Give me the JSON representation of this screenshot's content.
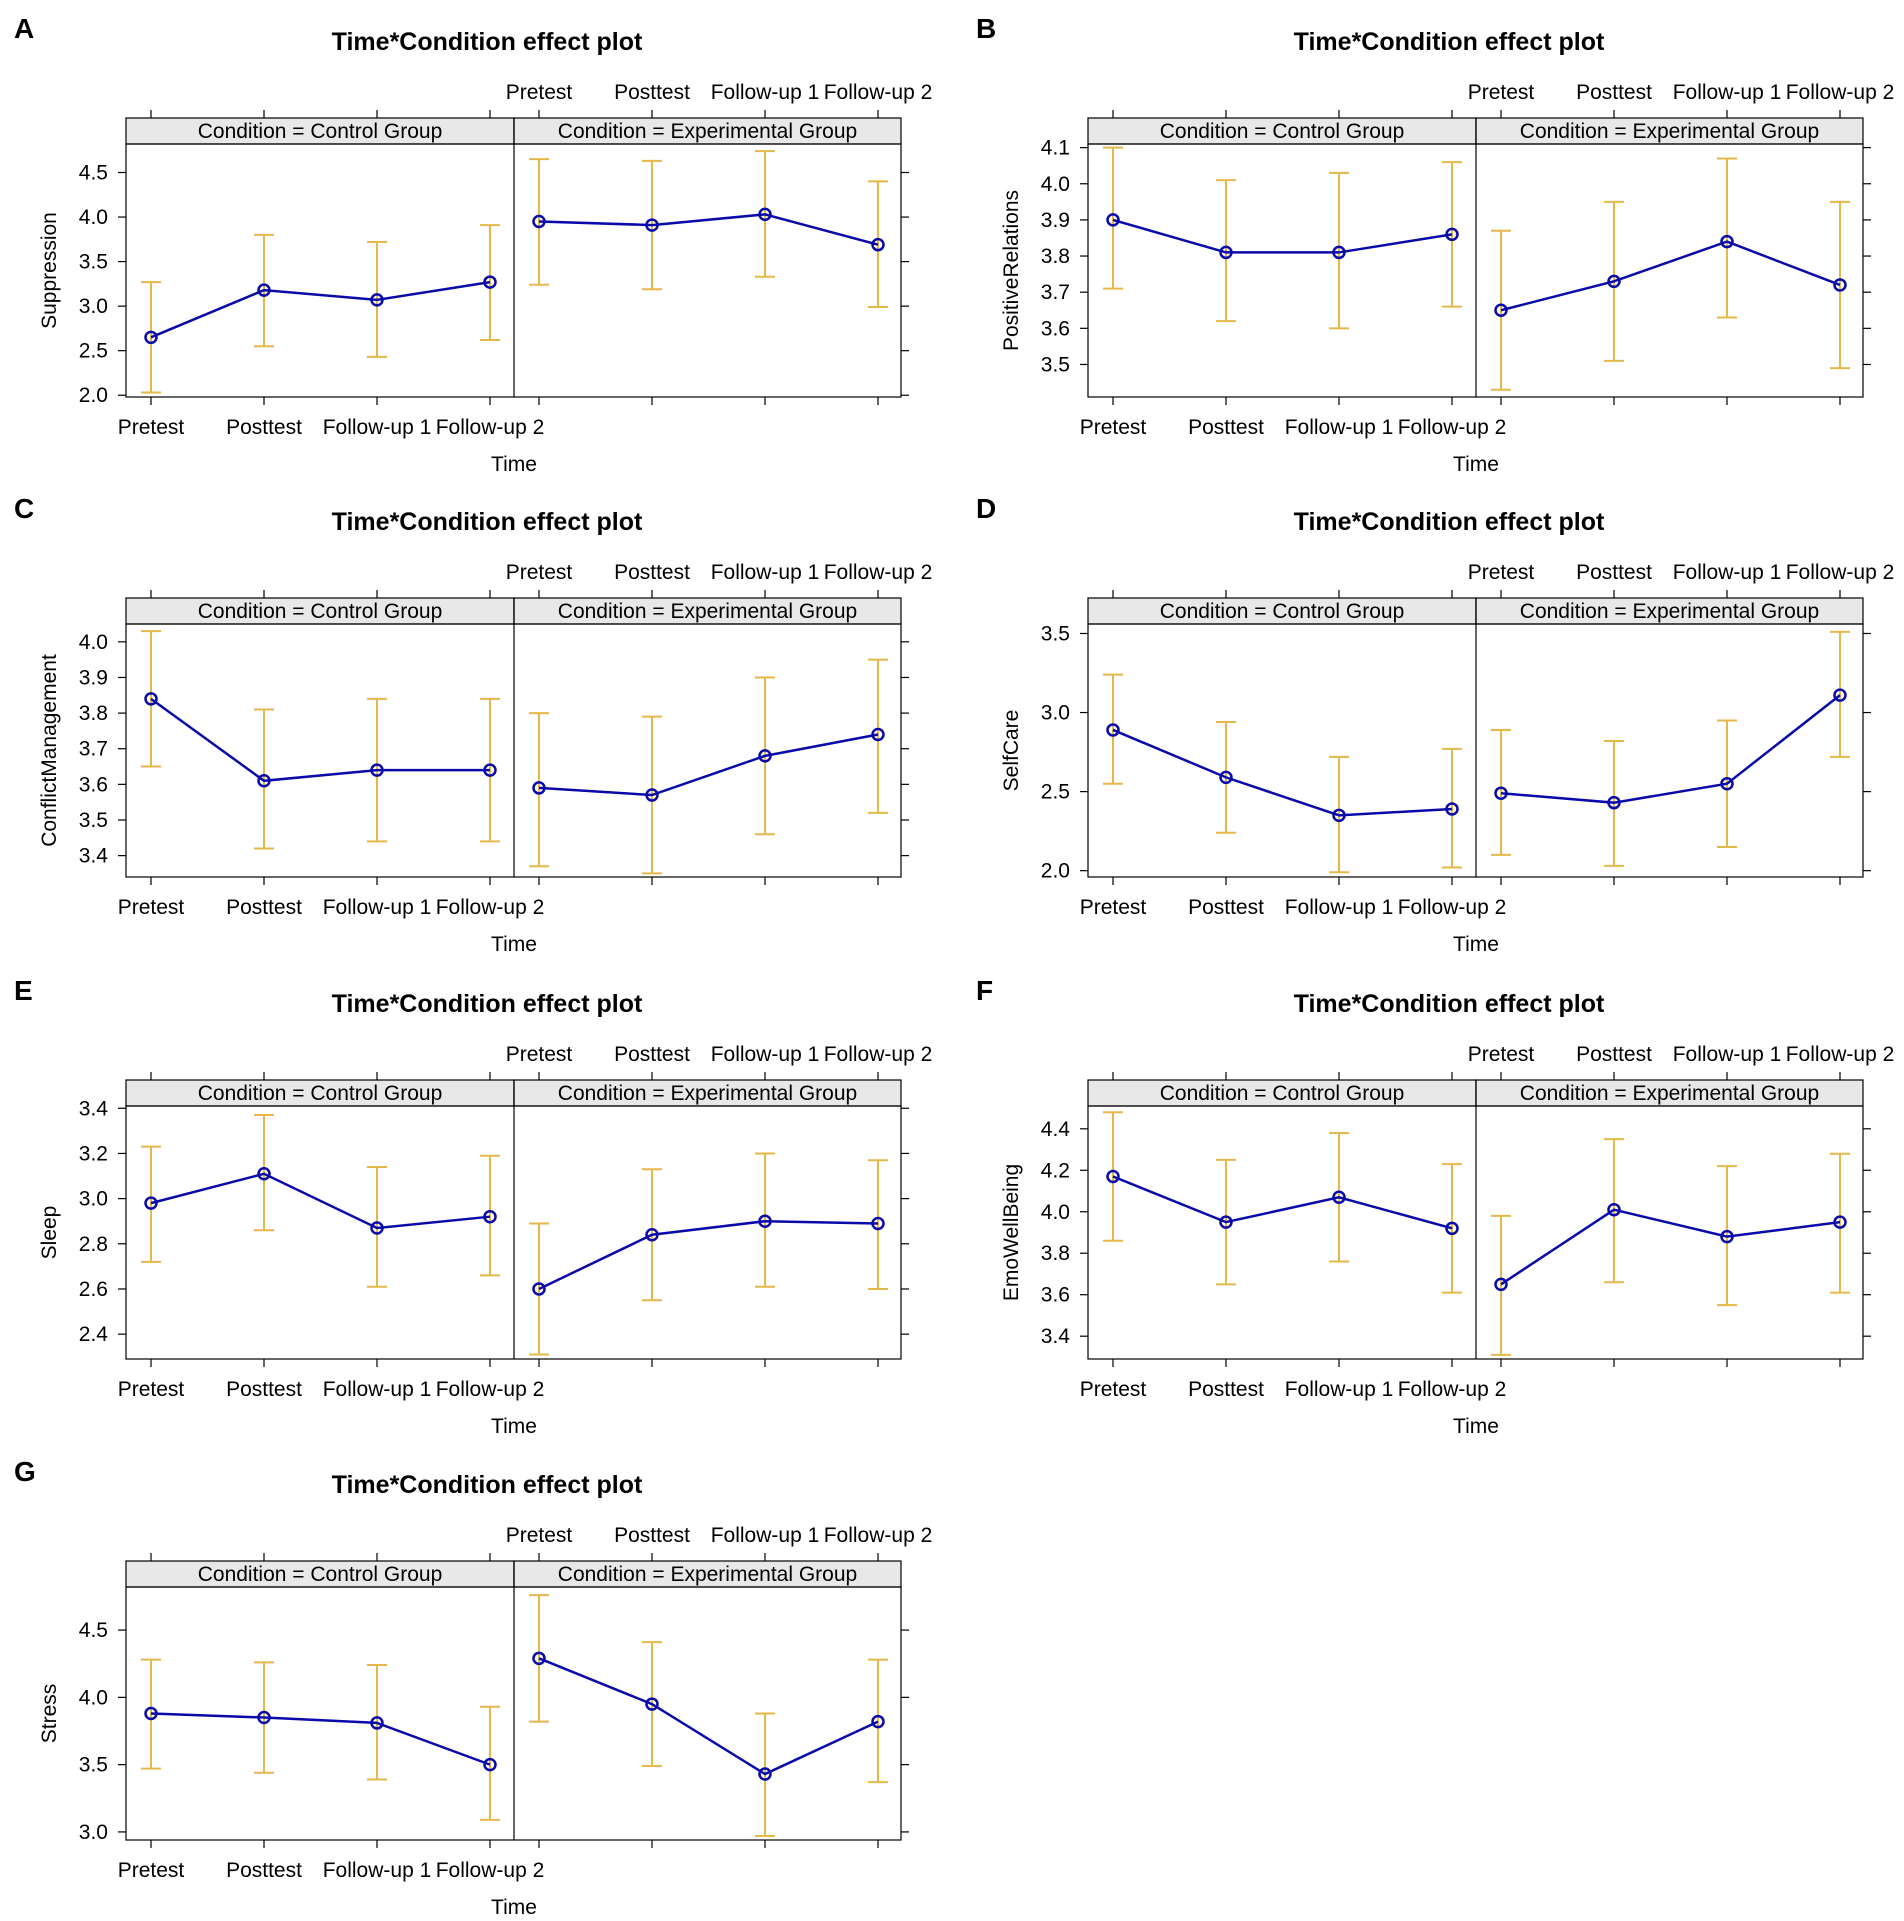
{
  "colors": {
    "line": "#0A0AAA",
    "error_bar": "#E5B84A",
    "strip": "#E8E8E8",
    "frame": "#000000"
  },
  "chart_data": [
    {
      "letter": "A",
      "type": "line",
      "title": "Time*Condition effect plot",
      "xlabel": "Time",
      "ylabel": "Suppression",
      "categories": [
        "Pretest",
        "Posttest",
        "Follow-up 1",
        "Follow-up 2"
      ],
      "ylim": [
        1.98,
        4.82
      ],
      "yticks": [
        "2.0",
        "2.5",
        "3.0",
        "3.5",
        "4.0",
        "4.5"
      ],
      "panels": [
        {
          "strip": "Condition = Control Group",
          "values": [
            2.65,
            3.18,
            3.07,
            3.27
          ],
          "lower": [
            2.03,
            2.55,
            2.43,
            2.62
          ],
          "upper": [
            3.27,
            3.8,
            3.72,
            3.91
          ]
        },
        {
          "strip": "Condition = Experimental Group",
          "values": [
            3.95,
            3.91,
            4.03,
            3.69
          ],
          "lower": [
            3.24,
            3.19,
            3.33,
            2.99
          ],
          "upper": [
            4.65,
            4.63,
            4.74,
            4.4
          ]
        }
      ]
    },
    {
      "letter": "B",
      "type": "line",
      "title": "Time*Condition effect plot",
      "xlabel": "Time",
      "ylabel": "PositiveRelations",
      "categories": [
        "Pretest",
        "Posttest",
        "Follow-up 1",
        "Follow-up 2"
      ],
      "ylim": [
        3.41,
        4.11
      ],
      "yticks": [
        "3.5",
        "3.6",
        "3.7",
        "3.8",
        "3.9",
        "4.0",
        "4.1"
      ],
      "panels": [
        {
          "strip": "Condition = Control Group",
          "values": [
            3.9,
            3.81,
            3.81,
            3.86
          ],
          "lower": [
            3.71,
            3.62,
            3.6,
            3.66
          ],
          "upper": [
            4.1,
            4.01,
            4.03,
            4.06
          ]
        },
        {
          "strip": "Condition = Experimental Group",
          "values": [
            3.65,
            3.73,
            3.84,
            3.72
          ],
          "lower": [
            3.43,
            3.51,
            3.63,
            3.49
          ],
          "upper": [
            3.87,
            3.95,
            4.07,
            3.95
          ]
        }
      ]
    },
    {
      "letter": "C",
      "type": "line",
      "title": "Time*Condition effect plot",
      "xlabel": "Time",
      "ylabel": "ConflictManagement",
      "categories": [
        "Pretest",
        "Posttest",
        "Follow-up 1",
        "Follow-up 2"
      ],
      "ylim": [
        3.34,
        4.05
      ],
      "yticks": [
        "3.4",
        "3.5",
        "3.6",
        "3.7",
        "3.8",
        "3.9",
        "4.0"
      ],
      "panels": [
        {
          "strip": "Condition = Control Group",
          "values": [
            3.84,
            3.61,
            3.64,
            3.64
          ],
          "lower": [
            3.65,
            3.42,
            3.44,
            3.44
          ],
          "upper": [
            4.03,
            3.81,
            3.84,
            3.84
          ]
        },
        {
          "strip": "Condition = Experimental Group",
          "values": [
            3.59,
            3.57,
            3.68,
            3.74
          ],
          "lower": [
            3.37,
            3.35,
            3.46,
            3.52
          ],
          "upper": [
            3.8,
            3.79,
            3.9,
            3.95
          ]
        }
      ]
    },
    {
      "letter": "D",
      "type": "line",
      "title": "Time*Condition effect plot",
      "xlabel": "Time",
      "ylabel": "SelfCare",
      "categories": [
        "Pretest",
        "Posttest",
        "Follow-up 1",
        "Follow-up 2"
      ],
      "ylim": [
        1.96,
        3.56
      ],
      "yticks": [
        "2.0",
        "2.5",
        "3.0",
        "3.5"
      ],
      "panels": [
        {
          "strip": "Condition = Control Group",
          "values": [
            2.89,
            2.59,
            2.35,
            2.39
          ],
          "lower": [
            2.55,
            2.24,
            1.99,
            2.02
          ],
          "upper": [
            3.24,
            2.94,
            2.72,
            2.77
          ]
        },
        {
          "strip": "Condition = Experimental Group",
          "values": [
            2.49,
            2.43,
            2.55,
            3.11
          ],
          "lower": [
            2.1,
            2.03,
            2.15,
            2.72
          ],
          "upper": [
            2.89,
            2.82,
            2.95,
            3.51
          ]
        }
      ]
    },
    {
      "letter": "E",
      "type": "line",
      "title": "Time*Condition effect plot",
      "xlabel": "Time",
      "ylabel": "Sleep",
      "categories": [
        "Pretest",
        "Posttest",
        "Follow-up 1",
        "Follow-up 2"
      ],
      "ylim": [
        2.29,
        3.41
      ],
      "yticks": [
        "2.4",
        "2.6",
        "2.8",
        "3.0",
        "3.2",
        "3.4"
      ],
      "panels": [
        {
          "strip": "Condition = Control Group",
          "values": [
            2.98,
            3.11,
            2.87,
            2.92
          ],
          "lower": [
            2.72,
            2.86,
            2.61,
            2.66
          ],
          "upper": [
            3.23,
            3.37,
            3.14,
            3.19
          ]
        },
        {
          "strip": "Condition = Experimental Group",
          "values": [
            2.6,
            2.84,
            2.9,
            2.89
          ],
          "lower": [
            2.31,
            2.55,
            2.61,
            2.6
          ],
          "upper": [
            2.89,
            3.13,
            3.2,
            3.17
          ]
        }
      ]
    },
    {
      "letter": "F",
      "type": "line",
      "title": "Time*Condition effect plot",
      "xlabel": "Time",
      "ylabel": "EmoWellBeing",
      "categories": [
        "Pretest",
        "Posttest",
        "Follow-up 1",
        "Follow-up 2"
      ],
      "ylim": [
        3.29,
        4.51
      ],
      "yticks": [
        "3.4",
        "3.6",
        "3.8",
        "4.0",
        "4.2",
        "4.4"
      ],
      "panels": [
        {
          "strip": "Condition = Control Group",
          "values": [
            4.17,
            3.95,
            4.07,
            3.92
          ],
          "lower": [
            3.86,
            3.65,
            3.76,
            3.61
          ],
          "upper": [
            4.48,
            4.25,
            4.38,
            4.23
          ]
        },
        {
          "strip": "Condition = Experimental Group",
          "values": [
            3.65,
            4.01,
            3.88,
            3.95
          ],
          "lower": [
            3.31,
            3.66,
            3.55,
            3.61
          ],
          "upper": [
            3.98,
            4.35,
            4.22,
            4.28
          ]
        }
      ]
    },
    {
      "letter": "G",
      "type": "line",
      "title": "Time*Condition effect plot",
      "xlabel": "Time",
      "ylabel": "Stress",
      "categories": [
        "Pretest",
        "Posttest",
        "Follow-up 1",
        "Follow-up 2"
      ],
      "ylim": [
        2.94,
        4.82
      ],
      "yticks": [
        "3.0",
        "3.5",
        "4.0",
        "4.5"
      ],
      "panels": [
        {
          "strip": "Condition = Control Group",
          "values": [
            3.88,
            3.85,
            3.81,
            3.5
          ],
          "lower": [
            3.47,
            3.44,
            3.39,
            3.09
          ],
          "upper": [
            4.28,
            4.26,
            4.24,
            3.93
          ]
        },
        {
          "strip": "Condition = Experimental Group",
          "values": [
            4.29,
            3.95,
            3.43,
            3.82
          ],
          "lower": [
            3.82,
            3.49,
            2.97,
            3.37
          ],
          "upper": [
            4.76,
            4.41,
            3.88,
            4.28
          ]
        }
      ]
    }
  ]
}
